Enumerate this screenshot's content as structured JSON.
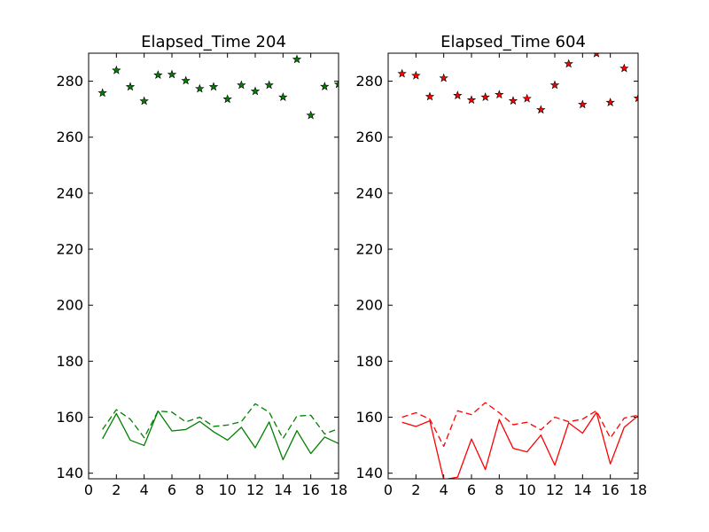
{
  "chart_data": [
    {
      "type": "line",
      "title": "Elapsed_Time 204",
      "xlabel": "",
      "ylabel": "",
      "xlim": [
        0,
        18
      ],
      "ylim": [
        138,
        290
      ],
      "x_ticks": [
        0,
        2,
        4,
        6,
        8,
        10,
        12,
        14,
        16,
        18
      ],
      "y_ticks": [
        140,
        160,
        180,
        200,
        220,
        240,
        260,
        280
      ],
      "grid": false,
      "color": "#008000",
      "x": [
        1,
        2,
        3,
        4,
        5,
        6,
        7,
        8,
        9,
        10,
        11,
        12,
        13,
        14,
        15,
        16,
        17,
        18
      ],
      "series": [
        {
          "style": "star-markers",
          "values": [
            275.8,
            283.9,
            278.0,
            272.9,
            282.2,
            282.4,
            280.2,
            277.3,
            278.0,
            273.6,
            278.6,
            276.4,
            278.6,
            274.3,
            287.8,
            267.8,
            278.1,
            278.9
          ]
        },
        {
          "style": "dashed",
          "values": [
            155.6,
            162.7,
            159.3,
            152.7,
            162.2,
            161.8,
            158.3,
            160.0,
            156.7,
            157.2,
            158.4,
            164.8,
            161.8,
            152.4,
            160.4,
            160.7,
            154.0,
            155.9
          ]
        },
        {
          "style": "solid",
          "values": [
            152.3,
            161.3,
            151.8,
            149.9,
            162.2,
            155.1,
            155.6,
            158.5,
            154.8,
            151.8,
            156.4,
            149.1,
            158.3,
            144.8,
            155.2,
            147.0,
            152.9,
            150.6
          ]
        }
      ]
    },
    {
      "type": "line",
      "title": "Elapsed_Time 604",
      "xlabel": "",
      "ylabel": "",
      "xlim": [
        0,
        18
      ],
      "ylim": [
        138,
        290
      ],
      "x_ticks": [
        0,
        2,
        4,
        6,
        8,
        10,
        12,
        14,
        16,
        18
      ],
      "y_ticks": [
        140,
        160,
        180,
        200,
        220,
        240,
        260,
        280
      ],
      "grid": false,
      "color": "#ff0000",
      "x": [
        1,
        2,
        3,
        4,
        5,
        6,
        7,
        8,
        9,
        10,
        11,
        12,
        13,
        14,
        15,
        16,
        17,
        18
      ],
      "series": [
        {
          "style": "star-markers",
          "values": [
            282.7,
            282.0,
            274.5,
            281.1,
            274.9,
            273.3,
            274.3,
            275.2,
            273.0,
            273.8,
            269.8,
            278.6,
            286.2,
            271.7,
            289.9,
            272.4,
            284.6,
            273.9
          ]
        },
        {
          "style": "dashed",
          "values": [
            160.0,
            161.6,
            159.3,
            149.6,
            162.3,
            160.9,
            165.2,
            161.6,
            157.3,
            158.2,
            155.5,
            160.0,
            158.4,
            159.3,
            162.3,
            152.6,
            159.7,
            160.7
          ]
        },
        {
          "style": "solid",
          "values": [
            158.2,
            156.7,
            158.7,
            137.7,
            138.6,
            152.2,
            141.3,
            159.2,
            148.9,
            147.6,
            153.6,
            142.9,
            158.0,
            154.3,
            161.7,
            143.3,
            156.4,
            160.5
          ]
        }
      ]
    }
  ]
}
